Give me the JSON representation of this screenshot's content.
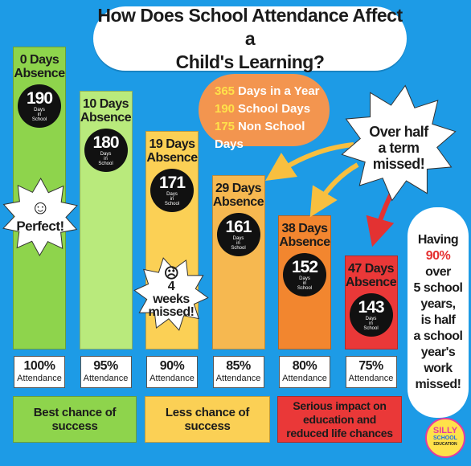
{
  "title": {
    "line1": "How Does School Attendance Affect a",
    "line2": "Child's Learning?"
  },
  "colors": {
    "background": "#1d9be6",
    "green": "#8ed44c",
    "lime": "#b9ea7c",
    "yellow": "#fbd055",
    "light_orange": "#f6b850",
    "orange": "#f2862f",
    "red": "#ea3838",
    "arrow_orange": "#f8bf3f",
    "arrow_red": "#e33232"
  },
  "chart_data": {
    "type": "bar",
    "categories": [
      "100% Attendance",
      "95% Attendance",
      "90% Attendance",
      "85% Attendance",
      "80% Attendance",
      "75% Attendance"
    ],
    "series": [
      {
        "values": [
          190,
          180,
          171,
          161,
          152,
          143
        ]
      }
    ],
    "bars": [
      {
        "absence": "0 Days",
        "absence_label": "Absence",
        "days": "190",
        "attendance": "100%",
        "attendance_label": "Attendance"
      },
      {
        "absence": "10 Days",
        "absence_label": "Absence",
        "days": "180",
        "attendance": "95%",
        "attendance_label": "Attendance"
      },
      {
        "absence": "19 Days",
        "absence_label": "Absence",
        "days": "171",
        "attendance": "90%",
        "attendance_label": "Attendance"
      },
      {
        "absence": "29 Days",
        "absence_label": "Absence",
        "days": "161",
        "attendance": "85%",
        "attendance_label": "Attendance"
      },
      {
        "absence": "38 Days",
        "absence_label": "Absence",
        "days": "152",
        "attendance": "80%",
        "attendance_label": "Attendance"
      },
      {
        "absence": "47 Days",
        "absence_label": "Absence",
        "days": "143",
        "attendance": "75%",
        "attendance_label": "Attendance"
      }
    ],
    "days_unit": {
      "line1": "Days",
      "line2": "in",
      "line3": "School"
    }
  },
  "info": {
    "year_num": "365",
    "year_text": "Days in a Year",
    "school_num": "190",
    "school_text": "School Days",
    "non_num": "175",
    "non_text": "Non School Days"
  },
  "bursts": {
    "perfect": {
      "icon": "smiley-face-icon",
      "text": "Perfect!"
    },
    "weeks": {
      "icon": "sad-face-icon",
      "line1": "4",
      "line2": "weeks",
      "line3": "missed!"
    },
    "half_term": {
      "line1": "Over half",
      "line2": "a term",
      "line3": "missed!"
    }
  },
  "right_box": {
    "l1": "Having",
    "l2": "90%",
    "l3": "over",
    "l4": "5 school",
    "l5": "years,",
    "l6": "is half",
    "l7": "a school",
    "l8": "year's",
    "l9": "work",
    "l10": "missed!"
  },
  "bottom": {
    "best": "Best chance of success",
    "less": "Less chance of success",
    "serious_l1": "Serious impact on",
    "serious_l2": "education and",
    "serious_l3": "reduced life chances"
  },
  "logo": {
    "l1": "SILLY",
    "l2": "SCHOOL",
    "l3": "EDUCATION"
  }
}
